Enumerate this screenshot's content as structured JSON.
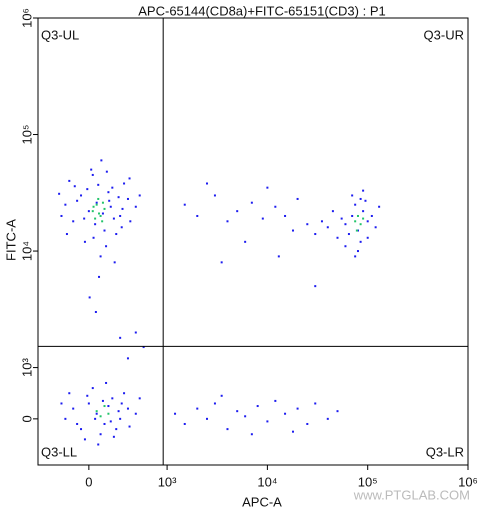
{
  "chart_data": {
    "type": "scatter",
    "title": "APC-65144(CD8a)+FITC-65151(CD3) : P1",
    "x_label": "APC-A",
    "y_label": "FITC-A",
    "xscale": "biexponential",
    "yscale": "biexponential",
    "xlim": [
      -650,
      1000000
    ],
    "ylim": [
      -900,
      1000000
    ],
    "xticks": [
      0,
      {
        "value": 1000,
        "label": "10³"
      },
      {
        "value": 10000,
        "label": "10⁴"
      },
      {
        "value": 100000,
        "label": "10⁵"
      },
      {
        "value": 1000000,
        "label": "10⁶"
      }
    ],
    "yticks": [
      0,
      {
        "value": 1000,
        "label": "10³"
      },
      {
        "value": 10000,
        "label": "10⁴"
      },
      {
        "value": 100000,
        "label": "10⁵"
      },
      {
        "value": 1000000,
        "label": "10⁶"
      }
    ],
    "gates": {
      "x": 950,
      "y": 1520
    },
    "quadrants": {
      "ul": "Q3-UL",
      "ur": "Q3-UR",
      "ll": "Q3-LL",
      "lr": "Q3-LR"
    },
    "watermark": "www.PTGLAB.COM",
    "series": [
      {
        "color": "#1c1cf0",
        "points": [
          [
            -300,
            25000
          ],
          [
            -200,
            18000
          ],
          [
            -100,
            30000
          ],
          [
            0,
            22000
          ],
          [
            100,
            26000
          ],
          [
            200,
            15000
          ],
          [
            300,
            35000
          ],
          [
            400,
            20000
          ],
          [
            500,
            28000
          ],
          [
            -250,
            40000
          ],
          [
            -50,
            12000
          ],
          [
            50,
            45000
          ],
          [
            150,
            9000
          ],
          [
            250,
            32000
          ],
          [
            350,
            14000
          ],
          [
            450,
            38000
          ],
          [
            600,
            24000
          ],
          [
            -350,
            20000
          ],
          [
            -150,
            27000
          ],
          [
            80,
            17000
          ],
          [
            180,
            21000
          ],
          [
            280,
            24000
          ],
          [
            380,
            29000
          ],
          [
            -20,
            34000
          ],
          [
            120,
            37000
          ],
          [
            220,
            11000
          ],
          [
            320,
            19000
          ],
          [
            420,
            16000
          ],
          [
            520,
            42000
          ],
          [
            650,
            30000
          ],
          [
            -380,
            31000
          ],
          [
            -280,
            14000
          ],
          [
            -180,
            36000
          ],
          [
            30,
            50000
          ],
          [
            130,
            6000
          ],
          [
            230,
            48000
          ],
          [
            330,
            8000
          ],
          [
            430,
            23000
          ],
          [
            530,
            18000
          ],
          [
            10,
            4000
          ],
          [
            90,
            3000
          ],
          [
            160,
            60000
          ],
          [
            -60,
            19000
          ],
          [
            60,
            13000
          ],
          [
            260,
            27000
          ],
          [
            60000,
            17000
          ],
          [
            70000,
            20000
          ],
          [
            80000,
            15000
          ],
          [
            90000,
            22000
          ],
          [
            100000,
            18000
          ],
          [
            75000,
            25000
          ],
          [
            85000,
            12000
          ],
          [
            65000,
            14000
          ],
          [
            95000,
            27000
          ],
          [
            110000,
            20000
          ],
          [
            55000,
            19000
          ],
          [
            50000,
            13000
          ],
          [
            40000,
            16000
          ],
          [
            45000,
            22000
          ],
          [
            120000,
            16000
          ],
          [
            130000,
            24000
          ],
          [
            70000,
            30000
          ],
          [
            80000,
            10000
          ],
          [
            90000,
            33000
          ],
          [
            60000,
            11000
          ],
          [
            35000,
            18000
          ],
          [
            30000,
            14000
          ],
          [
            100000,
            13000
          ],
          [
            85000,
            28000
          ],
          [
            75000,
            9000
          ],
          [
            1500,
            25000
          ],
          [
            2000,
            20000
          ],
          [
            3000,
            30000
          ],
          [
            4000,
            18000
          ],
          [
            5000,
            22000
          ],
          [
            7000,
            26000
          ],
          [
            9000,
            19000
          ],
          [
            12000,
            24000
          ],
          [
            15000,
            20000
          ],
          [
            20000,
            28000
          ],
          [
            25000,
            17000
          ],
          [
            2500,
            38000
          ],
          [
            6000,
            12000
          ],
          [
            10000,
            35000
          ],
          [
            18000,
            15000
          ],
          [
            3500,
            8000
          ],
          [
            13000,
            9000
          ],
          [
            30000,
            5000
          ],
          [
            -300,
            0
          ],
          [
            -200,
            200
          ],
          [
            -100,
            -200
          ],
          [
            0,
            300
          ],
          [
            100,
            100
          ],
          [
            200,
            -100
          ],
          [
            300,
            400
          ],
          [
            400,
            0
          ],
          [
            500,
            200
          ],
          [
            -250,
            500
          ],
          [
            -50,
            -400
          ],
          [
            50,
            600
          ],
          [
            150,
            -300
          ],
          [
            250,
            250
          ],
          [
            350,
            -200
          ],
          [
            450,
            500
          ],
          [
            600,
            100
          ],
          [
            -350,
            300
          ],
          [
            -150,
            -100
          ],
          [
            80,
            0
          ],
          [
            180,
            350
          ],
          [
            280,
            -50
          ],
          [
            380,
            150
          ],
          [
            -20,
            450
          ],
          [
            120,
            -500
          ],
          [
            220,
            700
          ],
          [
            320,
            -350
          ],
          [
            420,
            300
          ],
          [
            520,
            -150
          ],
          [
            650,
            400
          ],
          [
            700,
            1500
          ],
          [
            600,
            2000
          ],
          [
            500,
            1200
          ],
          [
            400,
            1800
          ],
          [
            1200,
            100
          ],
          [
            1500,
            -100
          ],
          [
            2000,
            200
          ],
          [
            2500,
            0
          ],
          [
            3000,
            300
          ],
          [
            4000,
            -200
          ],
          [
            5000,
            150
          ],
          [
            6000,
            50
          ],
          [
            8000,
            250
          ],
          [
            10000,
            -50
          ],
          [
            12000,
            350
          ],
          [
            15000,
            100
          ],
          [
            20000,
            200
          ],
          [
            25000,
            -100
          ],
          [
            30000,
            300
          ],
          [
            40000,
            0
          ],
          [
            50000,
            150
          ],
          [
            7000,
            -300
          ],
          [
            3500,
            450
          ],
          [
            18000,
            -250
          ]
        ]
      },
      {
        "color": "#22c46a",
        "points": [
          [
            50,
            22000
          ],
          [
            100,
            25000
          ],
          [
            150,
            20000
          ],
          [
            200,
            23000
          ],
          [
            120,
            28000
          ],
          [
            80,
            19000
          ],
          [
            180,
            26000
          ],
          [
            130,
            21000
          ],
          [
            60,
            24000
          ],
          [
            170,
            18000
          ],
          [
            75000,
            18000
          ],
          [
            80000,
            20000
          ],
          [
            85000,
            17000
          ],
          [
            78000,
            15000
          ],
          [
            90000,
            19000
          ],
          [
            100,
            150
          ],
          [
            200,
            250
          ],
          [
            150,
            50
          ],
          [
            250,
            100
          ]
        ]
      }
    ]
  }
}
